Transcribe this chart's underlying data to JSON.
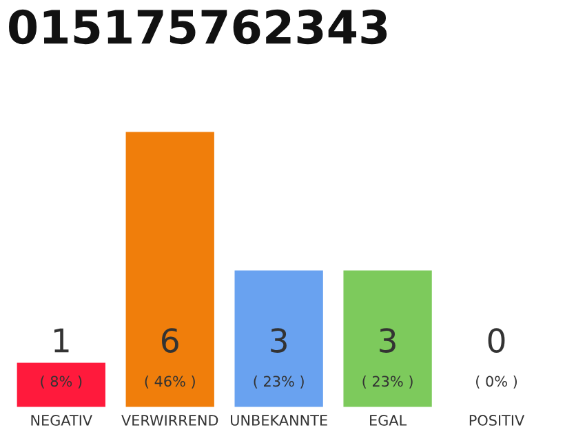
{
  "chart_data": {
    "type": "bar",
    "title": "015175762343",
    "categories": [
      "NEGATIV",
      "VERWIRREND",
      "UNBEKANNTE",
      "EGAL",
      "POSITIV"
    ],
    "values": [
      1,
      6,
      3,
      3,
      0
    ],
    "colors": [
      "#ff1a3c",
      "#f07e0b",
      "#69a2f0",
      "#7dca5c",
      null
    ],
    "ylim": [
      0,
      6
    ],
    "tick_labels": "x",
    "grid": false,
    "legend": false,
    "value_labels": [
      "1\n( 8% )",
      "6\n( 46% )",
      "3\n( 23% )",
      "3\n( 23% )",
      "0\n( 0% )"
    ]
  }
}
